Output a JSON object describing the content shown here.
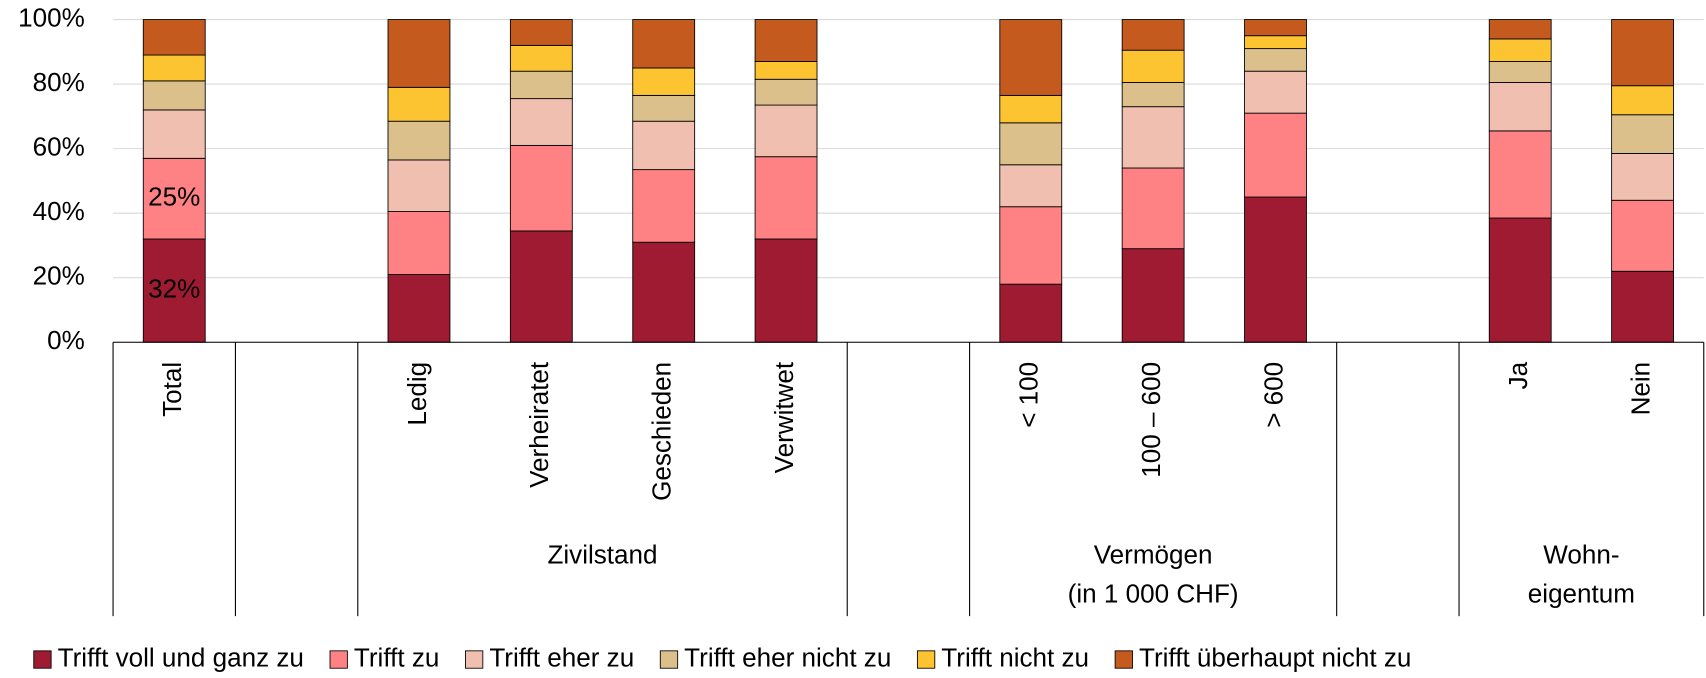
{
  "chart_data": {
    "type": "stacked_bar",
    "categories": [
      "Total",
      null,
      "Ledig",
      "Verheiratet",
      "Geschieden",
      "Verwitwet",
      null,
      "< 100",
      "100 – 600",
      "> 600",
      null,
      "Ja",
      "Nein"
    ],
    "groups": [
      {
        "label": "Zivilstand"
      },
      {
        "label": "Vermögen\n(in 1 000 CHF)"
      },
      {
        "label": "Wohn-\neigentum"
      }
    ],
    "series": [
      {
        "name": "Trifft voll und ganz zu",
        "color": "#9e1b32",
        "values": [
          32,
          null,
          21,
          34.5,
          31,
          32,
          null,
          18,
          29,
          45,
          null,
          38.5,
          22
        ],
        "value_labels": [
          "32%",
          null,
          null,
          null,
          null,
          null,
          null,
          null,
          null,
          null,
          null,
          null,
          null
        ]
      },
      {
        "name": "Trifft zu",
        "color": "#fe8284",
        "values": [
          25,
          null,
          19.5,
          26.5,
          22.5,
          25.5,
          null,
          24,
          25,
          26,
          null,
          27,
          22
        ],
        "value_labels": [
          "25%",
          null,
          null,
          null,
          null,
          null,
          null,
          null,
          null,
          null,
          null,
          null,
          null
        ]
      },
      {
        "name": "Trifft eher zu",
        "color": "#f0bfaf",
        "values": [
          15,
          null,
          16,
          14.5,
          15,
          16,
          null,
          13,
          19,
          13,
          null,
          15,
          14.5
        ]
      },
      {
        "name": "Trifft eher nicht zu",
        "color": "#dcc08b",
        "values": [
          9,
          null,
          12,
          8.5,
          8,
          8,
          null,
          13,
          7.5,
          7,
          null,
          6.5,
          12
        ]
      },
      {
        "name": "Trifft nicht zu",
        "color": "#fcc430",
        "values": [
          8,
          null,
          10.5,
          8,
          8.5,
          5.5,
          null,
          8.5,
          10,
          4,
          null,
          7,
          9
        ]
      },
      {
        "name": "Trifft überhaupt nicht zu",
        "color": "#c55a1e",
        "values": [
          11,
          null,
          21,
          8,
          15,
          13,
          null,
          23.5,
          9.5,
          5,
          null,
          6,
          20.5
        ]
      }
    ],
    "ylim": [
      0,
      100
    ],
    "yticks": [
      {
        "value": 0,
        "label": "0%"
      },
      {
        "value": 20,
        "label": "20%"
      },
      {
        "value": 40,
        "label": "40%"
      },
      {
        "value": 60,
        "label": "60%"
      },
      {
        "value": 80,
        "label": "80%"
      },
      {
        "value": 100,
        "label": "100%"
      }
    ],
    "grid": true,
    "legend": "bottom"
  }
}
